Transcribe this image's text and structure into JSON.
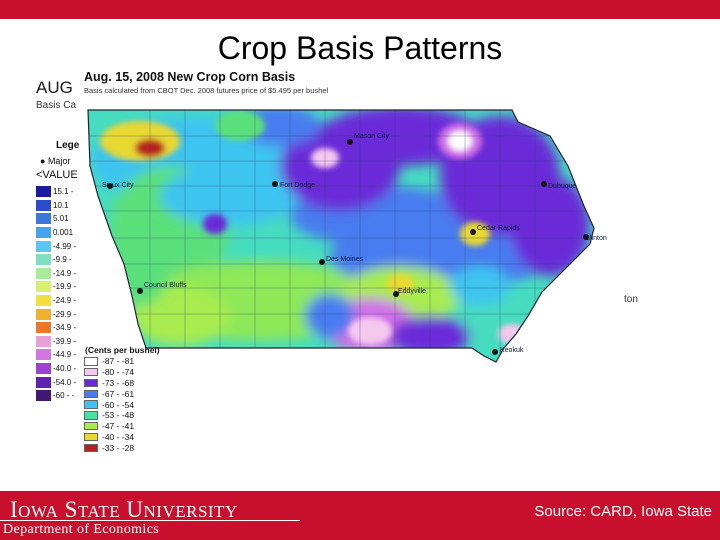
{
  "slide": {
    "title": "Crop Basis Patterns",
    "source": "Source: CARD, Iowa State",
    "logo_text": "Iowa State University",
    "department": "Department of Economics",
    "brand_color": "#c8102e"
  },
  "background_map": {
    "caption_fragment": "AUG",
    "subtitle_fragment": "Basis Ca",
    "legend_label": "Lege",
    "city_legend_fragment": "Major",
    "value_label": "<VALUE",
    "right_fragment": "ton",
    "legend_labels": [
      "15.1 -",
      "10.1",
      "5.01",
      "0.001",
      "-4.99 -",
      "-9.9 -",
      "-14.9 -",
      "-19.9 -",
      "-24.9 -",
      "-29.9 -",
      "-34.9 -",
      "-39.9 -",
      "-44.9 -",
      "-40.0 -",
      "-54.0 -",
      "-60 - -"
    ],
    "legend_colors": [
      "#1a1aa0",
      "#2a4cc8",
      "#3a78dc",
      "#46a4ec",
      "#58c8f0",
      "#7ee0c0",
      "#a8ec98",
      "#d8f070",
      "#f0e040",
      "#f0b030",
      "#e87828",
      "#e8a0d8",
      "#d078e0",
      "#a040d0",
      "#6020b0",
      "#401870"
    ]
  },
  "map": {
    "title": "Aug. 15, 2008 New Crop Corn Basis",
    "subtitle": "Basis calculated from CBOT Dec. 2008 futures price of $5.495 per bushel",
    "units": "(Cents per bushel)",
    "cities": [
      {
        "name": "Mason City"
      },
      {
        "name": "Sioux City"
      },
      {
        "name": "Fort Dodge"
      },
      {
        "name": "Dubuque"
      },
      {
        "name": "Cedar Rapids"
      },
      {
        "name": "Clinton"
      },
      {
        "name": "Des Moines"
      },
      {
        "name": "Council Bluffs"
      },
      {
        "name": "Eddyville"
      },
      {
        "name": "Keokuk"
      }
    ],
    "legend": [
      {
        "label": "-87 - -81",
        "color": "#ffffff"
      },
      {
        "label": "-80 - -74",
        "color": "#f5c8f0"
      },
      {
        "label": "-73 - -68",
        "color": "#6a2ad8"
      },
      {
        "label": "-67 - -61",
        "color": "#4a7cf0"
      },
      {
        "label": "-60 - -54",
        "color": "#3cc4f0"
      },
      {
        "label": "-53 - -48",
        "color": "#46e0a0"
      },
      {
        "label": "-47 - -41",
        "color": "#a8ec50"
      },
      {
        "label": "-40 - -34",
        "color": "#e8d830"
      },
      {
        "label": "-33 - -28",
        "color": "#b82020"
      }
    ]
  }
}
